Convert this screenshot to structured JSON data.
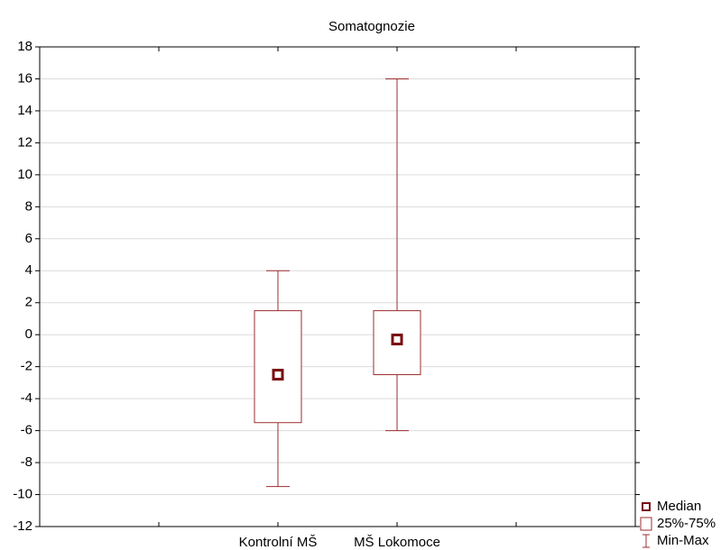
{
  "chart_data": {
    "type": "box",
    "title": "Somatognozie",
    "categories": [
      "Kontrolní MŠ",
      "MŠ Lokomoce"
    ],
    "boxes": [
      {
        "min": -9.5,
        "q1": -5.5,
        "median": -2.5,
        "q3": 1.5,
        "max": 4
      },
      {
        "min": -6,
        "q1": -2.5,
        "median": -0.3,
        "q3": 1.5,
        "max": 16
      }
    ],
    "color": "#9b2d30",
    "ylim": [
      -12,
      18
    ],
    "yticks": [
      -12,
      -10,
      -8,
      -6,
      -4,
      -2,
      0,
      2,
      4,
      6,
      8,
      10,
      12,
      14,
      16,
      18
    ],
    "grid": true,
    "legend": [
      "Median",
      "25%-75%",
      "Min-Max"
    ],
    "legend_position": "lower right"
  }
}
